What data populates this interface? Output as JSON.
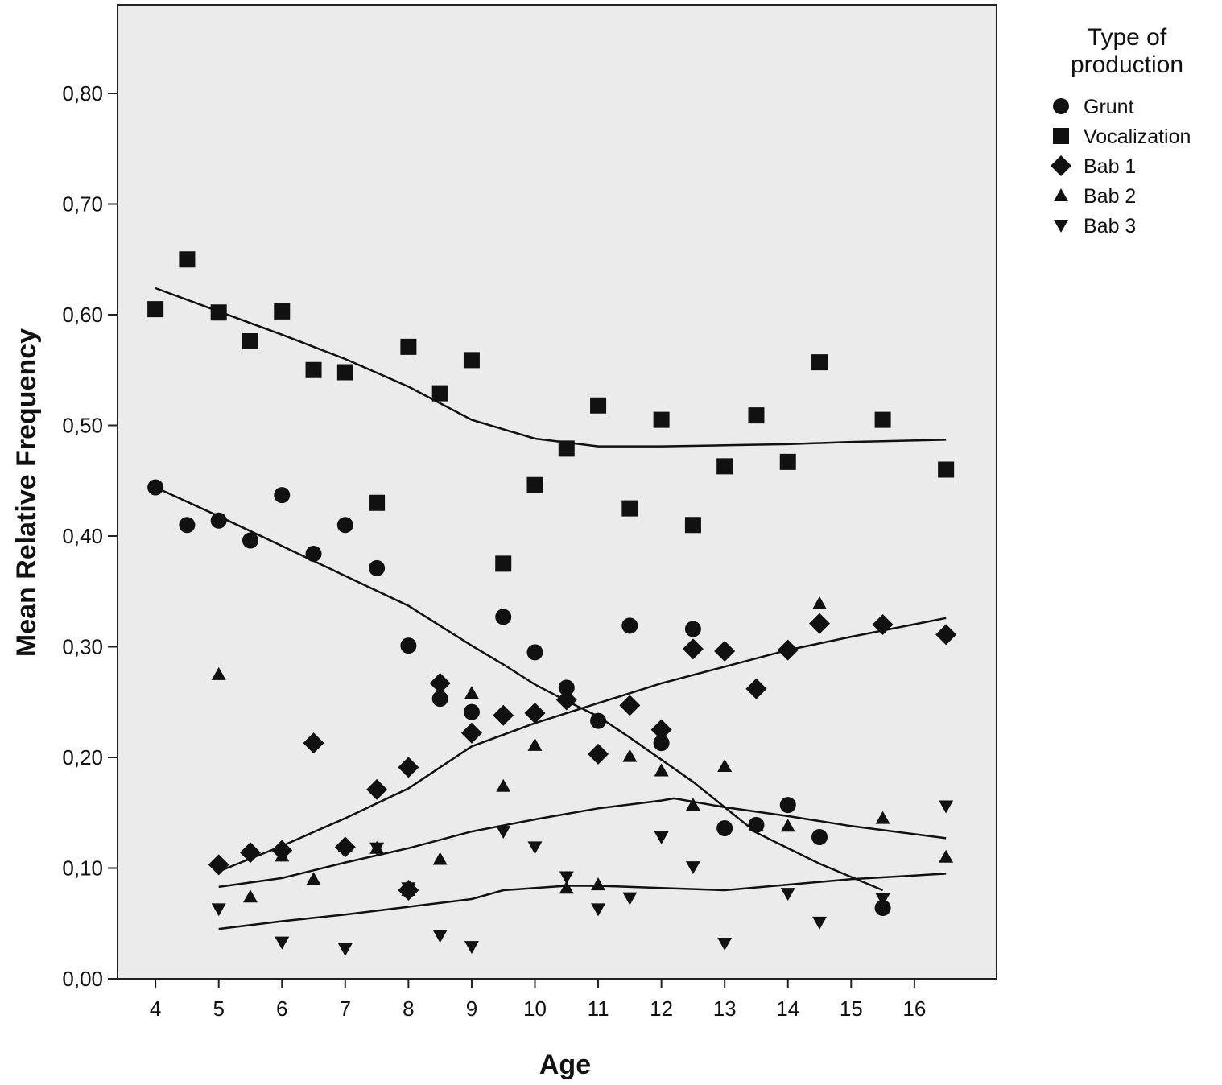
{
  "chart_data": {
    "type": "scatter",
    "xlabel": "Age",
    "ylabel": "Mean Relative Frequency",
    "xlim": [
      3.4,
      17.3
    ],
    "ylim": [
      0,
      0.88
    ],
    "x_ticks": [
      4,
      5,
      6,
      7,
      8,
      9,
      10,
      11,
      12,
      13,
      14,
      15,
      16
    ],
    "y_ticks": [
      0.0,
      0.1,
      0.2,
      0.3,
      0.4,
      0.5,
      0.6,
      0.7,
      0.8
    ],
    "y_tick_labels": [
      "0,00",
      "0,10",
      "0,20",
      "0,30",
      "0,40",
      "0,50",
      "0,60",
      "0,70",
      "0,80"
    ],
    "grid": false,
    "background": "#ebebeb",
    "legend": {
      "title": "Type of\nproduction",
      "placement": "right"
    },
    "series": [
      {
        "name": "Grunt",
        "marker": "circle",
        "points": [
          [
            4,
            0.444
          ],
          [
            4.5,
            0.41
          ],
          [
            5,
            0.414
          ],
          [
            5.5,
            0.396
          ],
          [
            6,
            0.437
          ],
          [
            6.5,
            0.384
          ],
          [
            7,
            0.41
          ],
          [
            7.5,
            0.371
          ],
          [
            8,
            0.301
          ],
          [
            8.5,
            0.253
          ],
          [
            9,
            0.241
          ],
          [
            9.5,
            0.327
          ],
          [
            10,
            0.295
          ],
          [
            10.5,
            0.263
          ],
          [
            11,
            0.233
          ],
          [
            11.5,
            0.319
          ],
          [
            12,
            0.213
          ],
          [
            12.5,
            0.316
          ],
          [
            13,
            0.136
          ],
          [
            13.5,
            0.139
          ],
          [
            14,
            0.157
          ],
          [
            14.5,
            0.128
          ],
          [
            15.5,
            0.064
          ]
        ],
        "fit": [
          [
            4,
            0.444
          ],
          [
            5,
            0.418
          ],
          [
            6,
            0.391
          ],
          [
            7,
            0.364
          ],
          [
            8,
            0.337
          ],
          [
            8.5,
            0.319
          ],
          [
            9,
            0.301
          ],
          [
            9.5,
            0.284
          ],
          [
            10,
            0.266
          ],
          [
            10.5,
            0.251
          ],
          [
            11,
            0.237
          ],
          [
            11.5,
            0.218
          ],
          [
            12,
            0.198
          ],
          [
            12.5,
            0.178
          ],
          [
            13,
            0.155
          ],
          [
            13.5,
            0.132
          ],
          [
            14,
            0.118
          ],
          [
            14.5,
            0.104
          ],
          [
            15,
            0.092
          ],
          [
            15.5,
            0.08
          ]
        ]
      },
      {
        "name": "Vocalization",
        "marker": "square",
        "points": [
          [
            4,
            0.605
          ],
          [
            4.5,
            0.65
          ],
          [
            5,
            0.602
          ],
          [
            5.5,
            0.576
          ],
          [
            6,
            0.603
          ],
          [
            6.5,
            0.55
          ],
          [
            7,
            0.548
          ],
          [
            7.5,
            0.43
          ],
          [
            8,
            0.571
          ],
          [
            8.5,
            0.529
          ],
          [
            9,
            0.559
          ],
          [
            9.5,
            0.375
          ],
          [
            10,
            0.446
          ],
          [
            10.5,
            0.479
          ],
          [
            11,
            0.518
          ],
          [
            11.5,
            0.425
          ],
          [
            12,
            0.505
          ],
          [
            12.5,
            0.41
          ],
          [
            13,
            0.463
          ],
          [
            13.5,
            0.509
          ],
          [
            14,
            0.467
          ],
          [
            14.5,
            0.557
          ],
          [
            15.5,
            0.505
          ],
          [
            16.5,
            0.46
          ]
        ],
        "fit": [
          [
            4,
            0.624
          ],
          [
            5,
            0.603
          ],
          [
            6,
            0.582
          ],
          [
            7,
            0.56
          ],
          [
            8,
            0.535
          ],
          [
            9,
            0.505
          ],
          [
            10,
            0.488
          ],
          [
            11,
            0.481
          ],
          [
            12,
            0.481
          ],
          [
            13,
            0.482
          ],
          [
            14,
            0.483
          ],
          [
            15,
            0.485
          ],
          [
            16.5,
            0.487
          ]
        ]
      },
      {
        "name": "Bab 1",
        "marker": "diamond",
        "points": [
          [
            5,
            0.103
          ],
          [
            5.5,
            0.114
          ],
          [
            6,
            0.116
          ],
          [
            6.5,
            0.213
          ],
          [
            7,
            0.119
          ],
          [
            7.5,
            0.171
          ],
          [
            8,
            0.191
          ],
          [
            8,
            0.08
          ],
          [
            8.5,
            0.267
          ],
          [
            9,
            0.222
          ],
          [
            9.5,
            0.238
          ],
          [
            10,
            0.24
          ],
          [
            10.5,
            0.252
          ],
          [
            11,
            0.203
          ],
          [
            11.5,
            0.247
          ],
          [
            12,
            0.225
          ],
          [
            12.5,
            0.298
          ],
          [
            13,
            0.296
          ],
          [
            13.5,
            0.262
          ],
          [
            14,
            0.297
          ],
          [
            14.5,
            0.321
          ],
          [
            15.5,
            0.32
          ],
          [
            16.5,
            0.311
          ]
        ],
        "fit": [
          [
            5,
            0.097
          ],
          [
            6,
            0.12
          ],
          [
            7,
            0.145
          ],
          [
            8,
            0.172
          ],
          [
            9,
            0.21
          ],
          [
            10,
            0.231
          ],
          [
            11,
            0.249
          ],
          [
            12,
            0.267
          ],
          [
            13,
            0.282
          ],
          [
            14,
            0.297
          ],
          [
            15,
            0.309
          ],
          [
            16.5,
            0.326
          ]
        ]
      },
      {
        "name": "Bab 2",
        "marker": "triangle-up",
        "points": [
          [
            5,
            0.275
          ],
          [
            5.5,
            0.074
          ],
          [
            6,
            0.111
          ],
          [
            6.5,
            0.09
          ],
          [
            7,
            0.12
          ],
          [
            7.5,
            0.118
          ],
          [
            8,
            0.08
          ],
          [
            8.5,
            0.108
          ],
          [
            9,
            0.258
          ],
          [
            9.5,
            0.174
          ],
          [
            10,
            0.211
          ],
          [
            10.5,
            0.082
          ],
          [
            11,
            0.085
          ],
          [
            11.5,
            0.201
          ],
          [
            12,
            0.188
          ],
          [
            12.5,
            0.157
          ],
          [
            13,
            0.192
          ],
          [
            13.5,
            0.139
          ],
          [
            14,
            0.138
          ],
          [
            14.5,
            0.339
          ],
          [
            15.5,
            0.145
          ],
          [
            16.5,
            0.11
          ]
        ],
        "fit": [
          [
            5,
            0.083
          ],
          [
            6,
            0.091
          ],
          [
            7,
            0.105
          ],
          [
            8,
            0.118
          ],
          [
            9,
            0.133
          ],
          [
            10,
            0.144
          ],
          [
            11,
            0.154
          ],
          [
            12,
            0.161
          ],
          [
            12.2,
            0.163
          ],
          [
            13,
            0.155
          ],
          [
            14,
            0.147
          ],
          [
            15,
            0.138
          ],
          [
            16.5,
            0.127
          ]
        ]
      },
      {
        "name": "Bab 3",
        "marker": "triangle-down",
        "points": [
          [
            5,
            0.063
          ],
          [
            6,
            0.033
          ],
          [
            7,
            0.027
          ],
          [
            7.5,
            0.118
          ],
          [
            8,
            0.082
          ],
          [
            8.5,
            0.039
          ],
          [
            9,
            0.029
          ],
          [
            9.5,
            0.133
          ],
          [
            10,
            0.119
          ],
          [
            10.5,
            0.092
          ],
          [
            11,
            0.063
          ],
          [
            11.5,
            0.073
          ],
          [
            12,
            0.128
          ],
          [
            12.5,
            0.101
          ],
          [
            13,
            0.032
          ],
          [
            14,
            0.077
          ],
          [
            14.5,
            0.051
          ],
          [
            15.5,
            0.072
          ],
          [
            16.5,
            0.156
          ]
        ],
        "fit": [
          [
            5,
            0.045
          ],
          [
            6,
            0.052
          ],
          [
            7,
            0.058
          ],
          [
            8,
            0.065
          ],
          [
            9,
            0.072
          ],
          [
            9.5,
            0.08
          ],
          [
            10,
            0.082
          ],
          [
            10.5,
            0.084
          ],
          [
            11,
            0.084
          ],
          [
            12,
            0.082
          ],
          [
            13,
            0.08
          ],
          [
            14,
            0.085
          ],
          [
            15,
            0.09
          ],
          [
            16.5,
            0.095
          ]
        ]
      }
    ]
  }
}
